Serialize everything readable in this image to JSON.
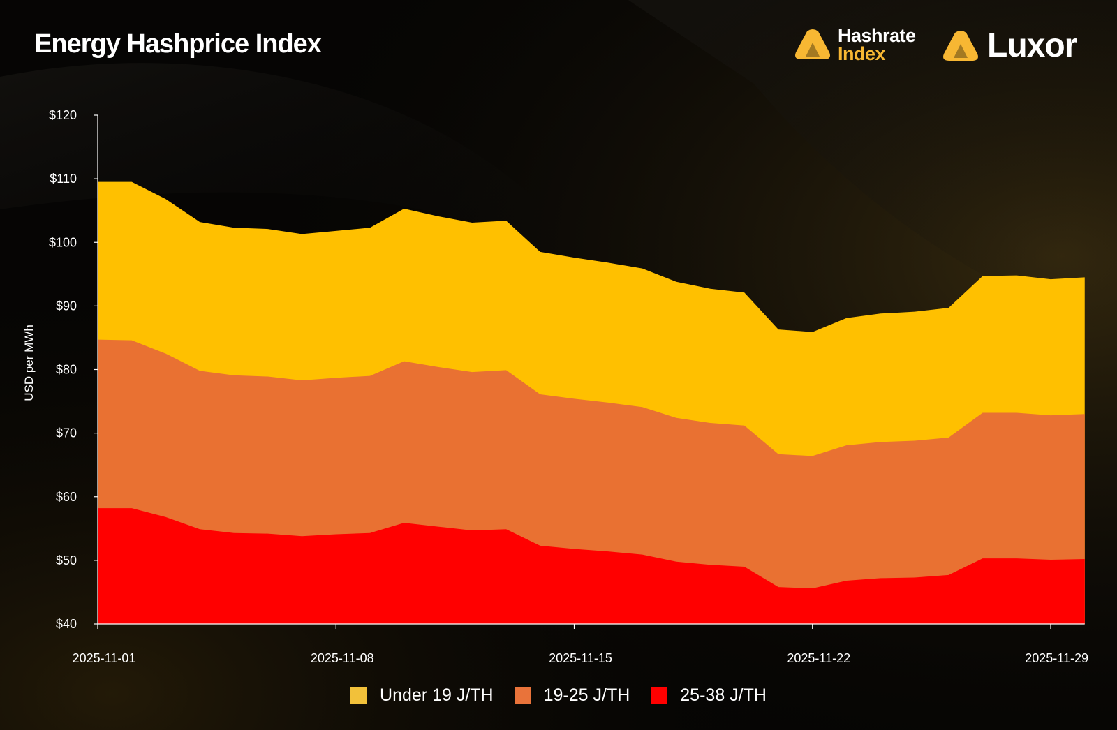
{
  "header": {
    "title": "Energy Hashprice Index",
    "logo_hashrate_line1": "Hashrate",
    "logo_hashrate_line2": "Index",
    "logo_luxor": "Luxor"
  },
  "colors": {
    "logo_yellow": "#f7b733",
    "axis": "#ffffff"
  },
  "chart_data": {
    "type": "area",
    "title": "Energy Hashprice Index",
    "ylabel": "USD per MWh",
    "xlabel": "",
    "ylim": [
      40,
      120
    ],
    "yticks": [
      40,
      50,
      60,
      70,
      80,
      90,
      100,
      110,
      120
    ],
    "ytick_labels": [
      "$40",
      "$50",
      "$60",
      "$70",
      "$80",
      "$90",
      "$100",
      "$110",
      "$120"
    ],
    "xtick_labels": [
      "2025-11-01",
      "2025-11-08",
      "2025-11-15",
      "2025-11-22",
      "2025-11-29"
    ],
    "x": [
      "2025-11-01",
      "2025-11-02",
      "2025-11-03",
      "2025-11-04",
      "2025-11-05",
      "2025-11-06",
      "2025-11-07",
      "2025-11-08",
      "2025-11-09",
      "2025-11-10",
      "2025-11-11",
      "2025-11-12",
      "2025-11-13",
      "2025-11-14",
      "2025-11-15",
      "2025-11-16",
      "2025-11-17",
      "2025-11-18",
      "2025-11-19",
      "2025-11-20",
      "2025-11-21",
      "2025-11-22",
      "2025-11-23",
      "2025-11-24",
      "2025-11-25",
      "2025-11-26",
      "2025-11-27",
      "2025-11-28",
      "2025-11-29",
      "2025-11-30"
    ],
    "stacked": false,
    "grid": false,
    "legend_position": "bottom",
    "series": [
      {
        "name": "Under 19 J/TH",
        "color": "#ffc000",
        "legend_color": "#f2c13a",
        "values": [
          109.5,
          109.5,
          106.8,
          103.2,
          102.3,
          102.1,
          101.3,
          101.8,
          102.3,
          105.3,
          104.1,
          103.1,
          103.4,
          98.5,
          97.6,
          96.8,
          95.9,
          93.8,
          92.7,
          92.1,
          86.3,
          85.9,
          88.1,
          88.8,
          89.1,
          89.7,
          94.7,
          94.8,
          94.2,
          94.5
        ]
      },
      {
        "name": "19-25 J/TH",
        "color": "#e97132",
        "legend_color": "#e9733a",
        "values": [
          84.7,
          84.6,
          82.5,
          79.8,
          79.1,
          78.9,
          78.3,
          78.7,
          79.0,
          81.3,
          80.4,
          79.6,
          79.9,
          76.1,
          75.4,
          74.8,
          74.1,
          72.4,
          71.6,
          71.2,
          66.7,
          66.4,
          68.1,
          68.6,
          68.8,
          69.3,
          73.2,
          73.2,
          72.8,
          73.0
        ]
      },
      {
        "name": "25-38 J/TH",
        "color": "#ff0000",
        "legend_color": "#ff0000",
        "values": [
          58.2,
          58.2,
          56.8,
          54.9,
          54.3,
          54.2,
          53.8,
          54.1,
          54.3,
          55.9,
          55.3,
          54.7,
          54.9,
          52.3,
          51.8,
          51.4,
          50.9,
          49.8,
          49.3,
          49.0,
          45.8,
          45.6,
          46.8,
          47.2,
          47.3,
          47.7,
          50.3,
          50.3,
          50.1,
          50.2
        ]
      }
    ]
  }
}
